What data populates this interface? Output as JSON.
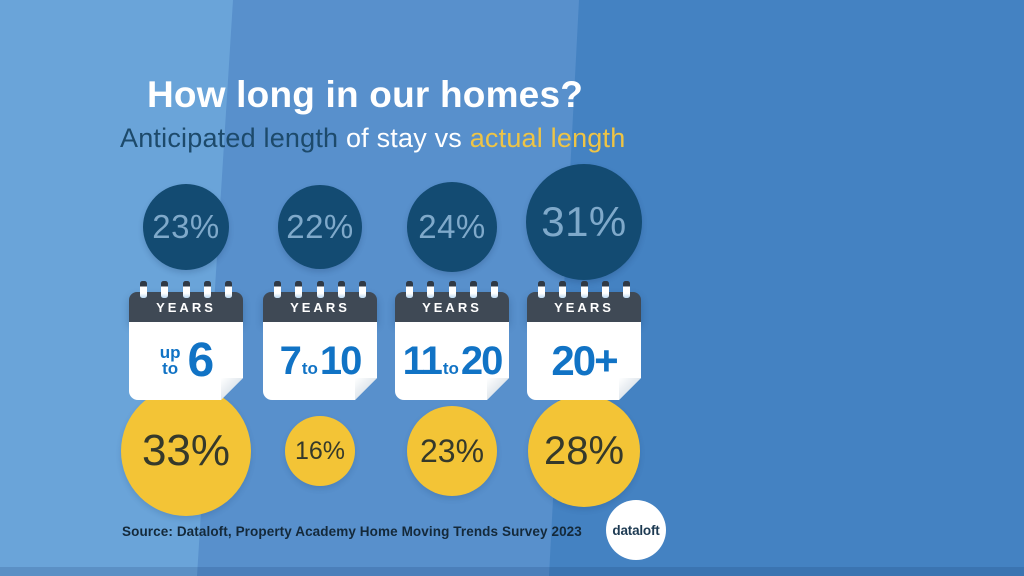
{
  "title": "How long in our homes?",
  "subtitle": {
    "anticipated": "Anticipated length",
    "middle": " of stay vs ",
    "actual": "actual length"
  },
  "columns": [
    {
      "anticipated_pct": "23%",
      "calendar_label": "YEARS",
      "range": {
        "stack1": "up",
        "stack2": "to",
        "big1": "6"
      },
      "actual_pct": "33%"
    },
    {
      "anticipated_pct": "22%",
      "calendar_label": "YEARS",
      "range": {
        "big1": "7",
        "mid": "to",
        "big2": "10"
      },
      "actual_pct": "16%"
    },
    {
      "anticipated_pct": "24%",
      "calendar_label": "YEARS",
      "range": {
        "big1": "11",
        "mid": "to",
        "big2": "20"
      },
      "actual_pct": "23%"
    },
    {
      "anticipated_pct": "31%",
      "calendar_label": "YEARS",
      "range": {
        "big1": "20+"
      },
      "actual_pct": "28%"
    }
  ],
  "source": "Source: Dataloft, Property Academy Home Moving Trends Survey 2023",
  "logo_text": "dataloft",
  "colors": {
    "bg_left": "#6aa4d9",
    "bg_mid": "#5890cc",
    "bg_right": "#4482c2",
    "navy_circle": "#134b72",
    "navy_circle_text": "#7fa9ca",
    "yellow_circle": "#f3c436",
    "yellow_circle_text": "#35392b",
    "calendar_header": "#3f4955",
    "calendar_number_blue": "#1173c5",
    "title_color": "#ffffff",
    "subtitle_navy": "#1d4a6b",
    "subtitle_gold": "#eec445"
  },
  "chart_data": {
    "type": "bar",
    "variant": "proportional_bubbles",
    "title": "How long in our homes?",
    "subtitle": "Anticipated length of stay vs actual length",
    "categories": [
      "up to 6 years",
      "7 to 10 years",
      "11 to 20 years",
      "20+ years"
    ],
    "series": [
      {
        "name": "Anticipated length of stay",
        "unit": "%",
        "color": "#134b72",
        "values": [
          23,
          22,
          24,
          31
        ]
      },
      {
        "name": "Actual length",
        "unit": "%",
        "color": "#f3c436",
        "values": [
          33,
          16,
          23,
          28
        ]
      }
    ],
    "legend_position": "in-subtitle-colors",
    "source": "Dataloft, Property Academy Home Moving Trends Survey 2023"
  }
}
